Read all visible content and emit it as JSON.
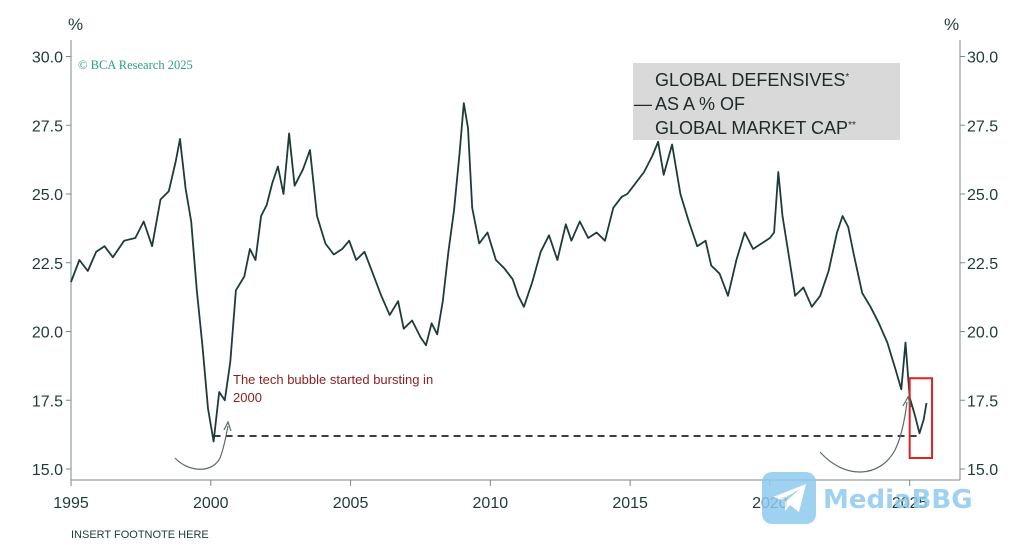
{
  "chart_data": {
    "type": "line",
    "title_lines": [
      "GLOBAL DEFENSIVES",
      "AS A % OF",
      "GLOBAL MARKET CAP"
    ],
    "title_dash": "—",
    "title_marks": [
      "*",
      "**"
    ],
    "credit": "© BCΑ Research 2025",
    "unit_left": "%",
    "unit_right": "%",
    "ylim": [
      14.6,
      30.6
    ],
    "xlim": [
      1995,
      2026.8
    ],
    "yticks": [
      15.0,
      17.5,
      20.0,
      22.5,
      25.0,
      27.5,
      30.0
    ],
    "ytick_labels": [
      "15.0",
      "17.5",
      "20.0",
      "22.5",
      "25.0",
      "27.5",
      "30.0"
    ],
    "xticks": [
      1995,
      2000,
      2005,
      2010,
      2015,
      2020,
      2025
    ],
    "xtick_labels": [
      "1995",
      "2000",
      "2005",
      "2010",
      "2015",
      "2020",
      "2025"
    ],
    "reference_level": 16.2,
    "annotation": [
      "The tech bubble started bursting in",
      "2000"
    ],
    "footnote": "INSERT FOOTNOTE HERE",
    "highlight_range": {
      "x": [
        2025.0,
        2025.8
      ],
      "y": [
        15.4,
        18.3
      ]
    },
    "series": [
      {
        "name": "Global Defensives % of Global Market Cap",
        "color": "#1e3b3b",
        "points": [
          [
            1995.0,
            21.8
          ],
          [
            1995.3,
            22.6
          ],
          [
            1995.6,
            22.2
          ],
          [
            1995.9,
            22.9
          ],
          [
            1996.2,
            23.1
          ],
          [
            1996.5,
            22.7
          ],
          [
            1996.9,
            23.3
          ],
          [
            1997.3,
            23.4
          ],
          [
            1997.6,
            24.0
          ],
          [
            1997.9,
            23.1
          ],
          [
            1998.2,
            24.8
          ],
          [
            1998.5,
            25.1
          ],
          [
            1998.75,
            26.2
          ],
          [
            1998.9,
            27.0
          ],
          [
            1999.1,
            25.2
          ],
          [
            1999.3,
            24.0
          ],
          [
            1999.5,
            21.5
          ],
          [
            1999.7,
            19.5
          ],
          [
            1999.9,
            17.2
          ],
          [
            2000.1,
            16.0
          ],
          [
            2000.3,
            17.8
          ],
          [
            2000.5,
            17.5
          ],
          [
            2000.7,
            18.9
          ],
          [
            2000.9,
            21.5
          ],
          [
            2001.2,
            22.0
          ],
          [
            2001.4,
            23.0
          ],
          [
            2001.6,
            22.6
          ],
          [
            2001.8,
            24.2
          ],
          [
            2002.0,
            24.6
          ],
          [
            2002.2,
            25.4
          ],
          [
            2002.4,
            26.0
          ],
          [
            2002.6,
            25.0
          ],
          [
            2002.8,
            27.2
          ],
          [
            2003.0,
            25.3
          ],
          [
            2003.3,
            25.9
          ],
          [
            2003.55,
            26.6
          ],
          [
            2003.8,
            24.2
          ],
          [
            2004.1,
            23.2
          ],
          [
            2004.4,
            22.8
          ],
          [
            2004.7,
            23.0
          ],
          [
            2004.95,
            23.3
          ],
          [
            2005.2,
            22.6
          ],
          [
            2005.5,
            22.9
          ],
          [
            2005.8,
            22.1
          ],
          [
            2006.1,
            21.3
          ],
          [
            2006.4,
            20.6
          ],
          [
            2006.7,
            21.1
          ],
          [
            2006.9,
            20.1
          ],
          [
            2007.2,
            20.4
          ],
          [
            2007.5,
            19.8
          ],
          [
            2007.7,
            19.5
          ],
          [
            2007.9,
            20.3
          ],
          [
            2008.1,
            19.9
          ],
          [
            2008.3,
            21.1
          ],
          [
            2008.5,
            22.9
          ],
          [
            2008.7,
            24.4
          ],
          [
            2008.9,
            26.5
          ],
          [
            2009.05,
            28.3
          ],
          [
            2009.2,
            27.4
          ],
          [
            2009.35,
            24.5
          ],
          [
            2009.6,
            23.2
          ],
          [
            2009.9,
            23.6
          ],
          [
            2010.2,
            22.6
          ],
          [
            2010.5,
            22.3
          ],
          [
            2010.8,
            21.9
          ],
          [
            2011.0,
            21.3
          ],
          [
            2011.2,
            20.9
          ],
          [
            2011.5,
            21.8
          ],
          [
            2011.8,
            22.9
          ],
          [
            2012.1,
            23.5
          ],
          [
            2012.4,
            22.6
          ],
          [
            2012.7,
            23.9
          ],
          [
            2012.9,
            23.3
          ],
          [
            2013.2,
            24.0
          ],
          [
            2013.5,
            23.4
          ],
          [
            2013.8,
            23.6
          ],
          [
            2014.1,
            23.3
          ],
          [
            2014.4,
            24.5
          ],
          [
            2014.7,
            24.9
          ],
          [
            2014.9,
            25.0
          ],
          [
            2015.2,
            25.4
          ],
          [
            2015.5,
            25.8
          ],
          [
            2015.8,
            26.4
          ],
          [
            2016.0,
            26.9
          ],
          [
            2016.2,
            25.7
          ],
          [
            2016.5,
            26.8
          ],
          [
            2016.8,
            25.0
          ],
          [
            2017.1,
            24.0
          ],
          [
            2017.4,
            23.1
          ],
          [
            2017.7,
            23.3
          ],
          [
            2017.9,
            22.4
          ],
          [
            2018.2,
            22.1
          ],
          [
            2018.5,
            21.3
          ],
          [
            2018.8,
            22.6
          ],
          [
            2019.1,
            23.6
          ],
          [
            2019.4,
            23.0
          ],
          [
            2019.7,
            23.2
          ],
          [
            2020.0,
            23.4
          ],
          [
            2020.15,
            23.6
          ],
          [
            2020.3,
            25.8
          ],
          [
            2020.45,
            24.2
          ],
          [
            2020.7,
            22.6
          ],
          [
            2020.9,
            21.3
          ],
          [
            2021.2,
            21.6
          ],
          [
            2021.5,
            20.9
          ],
          [
            2021.8,
            21.3
          ],
          [
            2022.1,
            22.2
          ],
          [
            2022.4,
            23.6
          ],
          [
            2022.6,
            24.2
          ],
          [
            2022.8,
            23.8
          ],
          [
            2023.0,
            22.8
          ],
          [
            2023.3,
            21.4
          ],
          [
            2023.6,
            20.9
          ],
          [
            2023.9,
            20.3
          ],
          [
            2024.2,
            19.6
          ],
          [
            2024.5,
            18.6
          ],
          [
            2024.7,
            17.9
          ],
          [
            2024.85,
            19.6
          ],
          [
            2025.0,
            17.6
          ],
          [
            2025.2,
            16.9
          ],
          [
            2025.35,
            16.3
          ],
          [
            2025.5,
            16.8
          ],
          [
            2025.6,
            17.4
          ]
        ]
      }
    ]
  },
  "watermark": {
    "text": "MediaBBG",
    "icon": "telegram-icon"
  },
  "colors": {
    "line": "#1e3b3b",
    "annotation": "#8b1e1e",
    "highlight": "#e0221e",
    "title_box": "#d9d9d9",
    "credit": "#2e9e86",
    "watermark": "#8fc9ee"
  }
}
